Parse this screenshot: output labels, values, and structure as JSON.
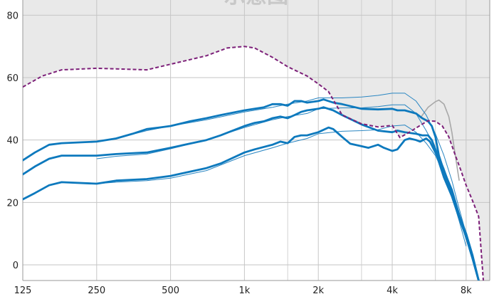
{
  "chart_data": {
    "type": "line",
    "title": "",
    "xlabel": "",
    "ylabel": "",
    "x_scale": "log",
    "xlim": [
      125,
      10000
    ],
    "ylim": [
      -5,
      87
    ],
    "grid": true,
    "watermark": "示意图",
    "x_ticks": [
      {
        "value": 125,
        "label": "125"
      },
      {
        "value": 250,
        "label": "250"
      },
      {
        "value": 500,
        "label": "500"
      },
      {
        "value": 1000,
        "label": "1k"
      },
      {
        "value": 2000,
        "label": "2k"
      },
      {
        "value": 4000,
        "label": "4k"
      },
      {
        "value": 8000,
        "label": "8k"
      }
    ],
    "x_minor_ticks": [
      1500,
      3000,
      6000
    ],
    "y_ticks": [
      0,
      20,
      40,
      60,
      80
    ],
    "colors": {
      "plot_background": "#e9e9e9",
      "shaded_area": "#ffffff",
      "grid": "#c6c6c6",
      "target": "#0d79bd",
      "thin_reference": "#2a86c2",
      "uncomfortable_level": "#7d2079",
      "gray_ref": "#a8a8a8"
    },
    "shaded_area": {
      "x": [
        125,
        150,
        180,
        250,
        300,
        400,
        500,
        700,
        850,
        1000,
        1100,
        1300,
        1500,
        1800,
        2000,
        2200,
        2500,
        3000,
        3500,
        4000,
        4300,
        4700,
        5200,
        5600,
        6000,
        6400,
        6800,
        7200,
        7600,
        8000,
        8500,
        9000,
        9400
      ],
      "y": [
        57,
        60.5,
        62.5,
        63,
        62.8,
        62.5,
        64.3,
        67,
        69.5,
        70,
        69.5,
        66.5,
        63.5,
        60.5,
        58,
        55.5,
        48,
        45.2,
        44.2,
        44.7,
        40.8,
        42.5,
        44.7,
        46.2,
        46,
        44.5,
        41,
        35.5,
        30.5,
        25.5,
        20.5,
        15.5,
        -5
      ]
    },
    "series": [
      {
        "x": [
          125,
          140,
          160,
          180,
          250,
          300,
          350,
          400,
          450,
          500,
          600,
          700,
          800,
          1000,
          1100,
          1200,
          1300,
          1400,
          1500,
          1600,
          1700,
          1800,
          2000,
          2100,
          2300,
          2500,
          3000,
          3500,
          4000,
          4200,
          4500,
          5000,
          5300,
          5600,
          5800,
          6000,
          6200,
          6500,
          7000,
          7500,
          8000,
          8500,
          9000,
          9300
        ],
        "y": [
          33.5,
          36,
          38.5,
          39,
          39.5,
          40.5,
          42,
          43.5,
          44,
          44.5,
          46,
          47,
          48,
          49.5,
          50,
          50.5,
          51.5,
          51.5,
          51,
          52.5,
          52.5,
          52,
          52.5,
          53,
          52,
          51.5,
          50,
          49.8,
          50,
          49.5,
          49.5,
          48.5,
          47,
          46,
          44.5,
          41,
          35,
          30,
          24,
          16,
          10,
          3,
          -5,
          -10
        ]
      },
      {
        "x": [
          125,
          140,
          160,
          180,
          250,
          300,
          400,
          500,
          700,
          800,
          1000,
          1100,
          1200,
          1300,
          1400,
          1500,
          1600,
          1700,
          1800,
          2000,
          2100,
          2300,
          2500,
          3000,
          3500,
          4000,
          4200,
          4500,
          5000,
          5300,
          5600,
          5800,
          6000,
          6200,
          6500,
          7000,
          7500,
          8000,
          8500,
          9000
        ],
        "y": [
          29,
          31.5,
          34,
          35,
          35,
          35.5,
          36,
          37.5,
          40,
          41.5,
          44.5,
          45.5,
          46,
          47,
          47.5,
          47,
          48,
          49,
          49.5,
          50,
          50.5,
          49.5,
          48,
          45,
          43,
          42.5,
          43,
          42.5,
          42,
          41.5,
          41.5,
          40,
          37,
          33,
          28,
          22,
          15,
          9,
          2,
          -5
        ]
      },
      {
        "x": [
          125,
          140,
          160,
          180,
          250,
          300,
          400,
          500,
          700,
          800,
          1000,
          1100,
          1300,
          1400,
          1500,
          1600,
          1700,
          1800,
          2000,
          2200,
          2300,
          2500,
          2700,
          3000,
          3200,
          3500,
          3700,
          4000,
          4200,
          4500,
          4700,
          5000,
          5200,
          5500,
          5700,
          6000,
          6500,
          7000,
          7500,
          8000,
          8500,
          9000
        ],
        "y": [
          21,
          23,
          25.5,
          26.5,
          26,
          27,
          27.5,
          28.5,
          31,
          32.5,
          36,
          37,
          38.5,
          39.5,
          39,
          41,
          41.5,
          41.5,
          42.5,
          44,
          43.5,
          41,
          38.8,
          38,
          37.5,
          38.5,
          37.5,
          36.5,
          37,
          40,
          40.5,
          40,
          39.5,
          40.5,
          39.5,
          36,
          30,
          23,
          16,
          9,
          2,
          -5
        ]
      }
    ],
    "thin_series": [
      {
        "x": [
          250,
          300,
          400,
          500,
          700,
          1000,
          1300,
          1500,
          1800,
          2000,
          2500,
          3000,
          3500,
          4000,
          4500,
          5000,
          5500,
          6000,
          6500,
          7000,
          7500,
          8000
        ],
        "y": [
          39.5,
          40.5,
          43,
          44.5,
          46.5,
          49,
          50.5,
          51.5,
          52.5,
          53.5,
          53.5,
          53.8,
          54.3,
          55,
          55,
          52.5,
          48,
          42,
          35,
          27,
          18,
          10
        ]
      },
      {
        "x": [
          250,
          300,
          400,
          500,
          700,
          1000,
          1300,
          1500,
          1800,
          2000,
          2500,
          3000,
          3500,
          4000,
          4500,
          5000,
          5500,
          6000,
          6500,
          7000,
          7500,
          8000
        ],
        "y": [
          34,
          34.8,
          35.5,
          37.2,
          40,
          44,
          46.5,
          47.5,
          48.5,
          50,
          50.3,
          50.3,
          50.7,
          51.3,
          51.3,
          48.5,
          43,
          37.5,
          31,
          24,
          16,
          8
        ]
      },
      {
        "x": [
          250,
          300,
          400,
          500,
          700,
          1000,
          1300,
          1500,
          1800,
          2000,
          2500,
          3000,
          3500,
          4000,
          4500,
          5000,
          5500,
          6000,
          6500,
          7000,
          7500,
          8000
        ],
        "y": [
          26,
          26.5,
          27,
          27.8,
          30.2,
          35,
          37.5,
          39,
          40.5,
          42,
          42.8,
          43,
          43.3,
          44.5,
          44.8,
          42.5,
          39,
          35,
          29,
          22,
          14,
          6
        ]
      }
    ],
    "gray_series": {
      "x": [
        5200,
        5600,
        6000,
        6200,
        6500,
        6800,
        7000,
        7200,
        7500
      ],
      "y": [
        47,
        50.5,
        52.3,
        52.8,
        51.5,
        47.5,
        42.5,
        36,
        27
      ]
    },
    "uncomfortable_level": {
      "x": [
        125,
        150,
        180,
        250,
        300,
        400,
        500,
        700,
        850,
        1000,
        1100,
        1300,
        1500,
        1800,
        2000,
        2200,
        2500,
        3000,
        3500,
        4000,
        4300,
        4700,
        5200,
        5600,
        6000,
        6400,
        6800,
        7200,
        7600,
        8000,
        8500,
        9000,
        9400
      ],
      "y": [
        57,
        60.5,
        62.5,
        63,
        62.8,
        62.5,
        64.3,
        67,
        69.5,
        70,
        69.5,
        66.5,
        63.5,
        60.5,
        58,
        55.5,
        48,
        45.2,
        44.2,
        44.7,
        40.8,
        42.5,
        44.7,
        46.2,
        46,
        44.5,
        41,
        35.5,
        30.5,
        25.5,
        20.5,
        15.5,
        -5
      ]
    }
  }
}
